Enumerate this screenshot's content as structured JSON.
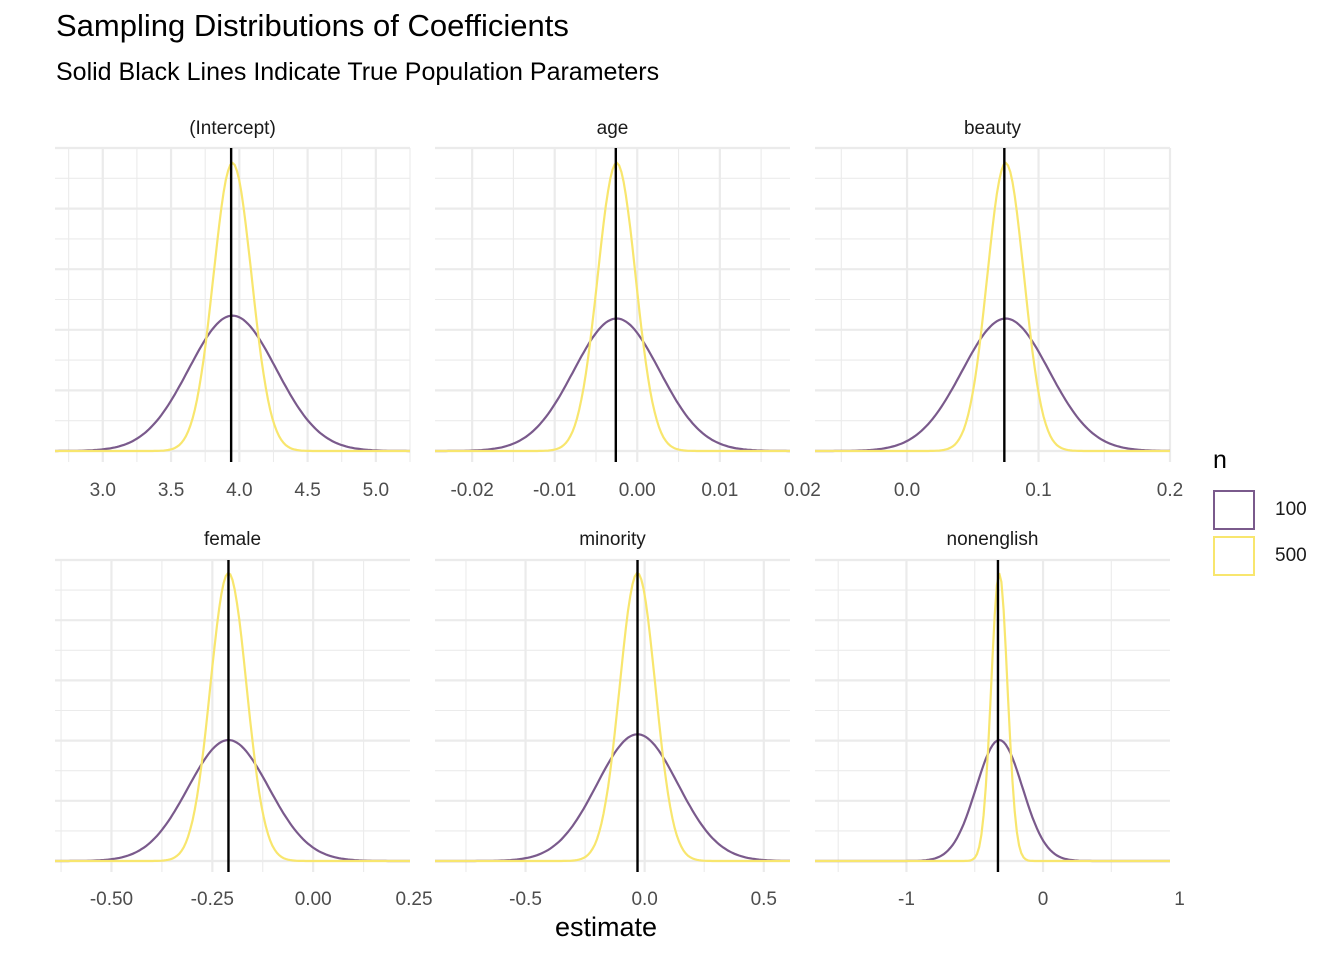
{
  "title": "Sampling Distributions of Coefficients",
  "subtitle": "Solid Black Lines Indicate True Population Parameters",
  "xlabel": "estimate",
  "legend": {
    "title": "n",
    "items": [
      {
        "label": "100",
        "color": "#7a5a8c"
      },
      {
        "label": "500",
        "color": "#f8e66e"
      }
    ]
  },
  "chart_data": {
    "type": "area",
    "description_of_series": "density curves of coefficient estimates by sample size n",
    "grid": true,
    "legend_position": "right",
    "panels": [
      {
        "title": "(Intercept)",
        "xlim": [
          2.65,
          5.25
        ],
        "ticks": [
          3.0,
          3.5,
          4.0,
          4.5,
          5.0
        ],
        "tick_labels": [
          "3.0",
          "3.5",
          "4.0",
          "4.5",
          "5.0"
        ],
        "true_value": 3.94,
        "curves": [
          {
            "n": "100",
            "mean": 3.95,
            "sd": 0.32,
            "peak": 0.47
          },
          {
            "n": "500",
            "mean": 3.95,
            "sd": 0.14,
            "peak": 1.0
          }
        ]
      },
      {
        "title": "age",
        "xlim": [
          -0.0245,
          0.0185
        ],
        "ticks": [
          -0.02,
          -0.01,
          0.0,
          0.01,
          0.02
        ],
        "tick_labels": [
          "-0.02",
          "-0.01",
          "0.00",
          "0.01",
          "0.02"
        ],
        "true_value": -0.0026,
        "curves": [
          {
            "n": "100",
            "mean": -0.0025,
            "sd": 0.0052,
            "peak": 0.46
          },
          {
            "n": "500",
            "mean": -0.0025,
            "sd": 0.0023,
            "peak": 1.0
          }
        ]
      },
      {
        "title": "beauty",
        "xlim": [
          -0.07,
          0.2
        ],
        "ticks": [
          0.0,
          0.1,
          0.2
        ],
        "tick_labels": [
          "0.0",
          "0.1",
          "0.2"
        ],
        "true_value": 0.074,
        "curves": [
          {
            "n": "100",
            "mean": 0.075,
            "sd": 0.033,
            "peak": 0.46
          },
          {
            "n": "500",
            "mean": 0.075,
            "sd": 0.014,
            "peak": 1.0
          }
        ]
      },
      {
        "title": "female",
        "xlim": [
          -0.64,
          0.24
        ],
        "ticks": [
          -0.5,
          -0.25,
          0.0,
          0.25
        ],
        "tick_labels": [
          "-0.50",
          "-0.25",
          "0.00",
          "0.25"
        ],
        "true_value": -0.21,
        "curves": [
          {
            "n": "100",
            "mean": -0.21,
            "sd": 0.1,
            "peak": 0.42
          },
          {
            "n": "500",
            "mean": -0.21,
            "sd": 0.045,
            "peak": 1.0
          }
        ]
      },
      {
        "title": "minority",
        "xlim": [
          -0.88,
          0.61
        ],
        "ticks": [
          -0.5,
          0.0,
          0.5
        ],
        "tick_labels": [
          "-0.5",
          "0.0",
          "0.5"
        ],
        "true_value": -0.03,
        "curves": [
          {
            "n": "100",
            "mean": -0.03,
            "sd": 0.17,
            "peak": 0.44
          },
          {
            "n": "500",
            "mean": -0.03,
            "sd": 0.075,
            "peak": 1.0
          }
        ]
      },
      {
        "title": "nonenglish",
        "xlim": [
          -1.67,
          0.93
        ],
        "ticks": [
          -1,
          0,
          1
        ],
        "tick_labels": [
          "-1",
          "0",
          "1"
        ],
        "true_value": -0.33,
        "curves": [
          {
            "n": "100",
            "mean": -0.32,
            "sd": 0.17,
            "peak": 0.42
          },
          {
            "n": "500",
            "mean": -0.32,
            "sd": 0.06,
            "peak": 1.0
          }
        ]
      }
    ]
  }
}
